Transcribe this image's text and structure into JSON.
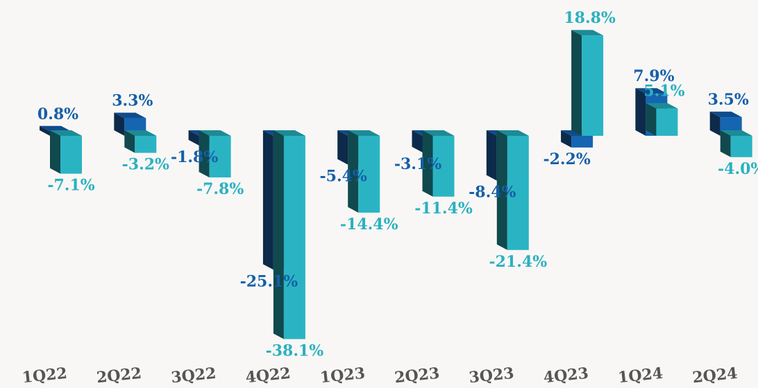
{
  "chart_data": {
    "type": "bar",
    "style": "3d-clustered",
    "categories": [
      "1Q22",
      "2Q22",
      "3Q22",
      "4Q22",
      "1Q23",
      "2Q23",
      "3Q23",
      "4Q23",
      "1Q24",
      "2Q24"
    ],
    "series": [
      {
        "values": [
          0.8,
          3.3,
          -1.8,
          -25.1,
          -5.4,
          -3.1,
          -8.4,
          -2.2,
          7.9,
          3.5
        ],
        "labels": [
          "0.8%",
          "3.3%",
          "-1.8%",
          "-25.1%",
          "-5.4%",
          "-3.1%",
          "-8.4%",
          "-2.2%",
          "7.9%",
          "3.5%"
        ]
      },
      {
        "values": [
          -7.1,
          -3.2,
          -7.8,
          -38.1,
          -14.4,
          -11.4,
          -21.4,
          18.8,
          5.1,
          -4.0
        ],
        "labels": [
          "-7.1%",
          "-3.2%",
          "-7.8%",
          "-38.1%",
          "-14.4%",
          "-11.4%",
          "-21.4%",
          "18.8%",
          "5.1%",
          "-4.0%"
        ]
      }
    ],
    "title": "",
    "xlabel": "",
    "ylabel": "",
    "ylim": [
      -40,
      20
    ],
    "grid": false,
    "legend": "none",
    "colors": {
      "series1_front": "#1565b0",
      "series1_side": "#0d2a4a",
      "series1_top": "#0f4c8c",
      "series2_front": "#2ab4c3",
      "series2_side": "#10494e",
      "series2_top": "#1e8a95",
      "series1_label": "#155fa8",
      "series2_label": "#2ab1c0",
      "category_label": "#555555"
    }
  }
}
